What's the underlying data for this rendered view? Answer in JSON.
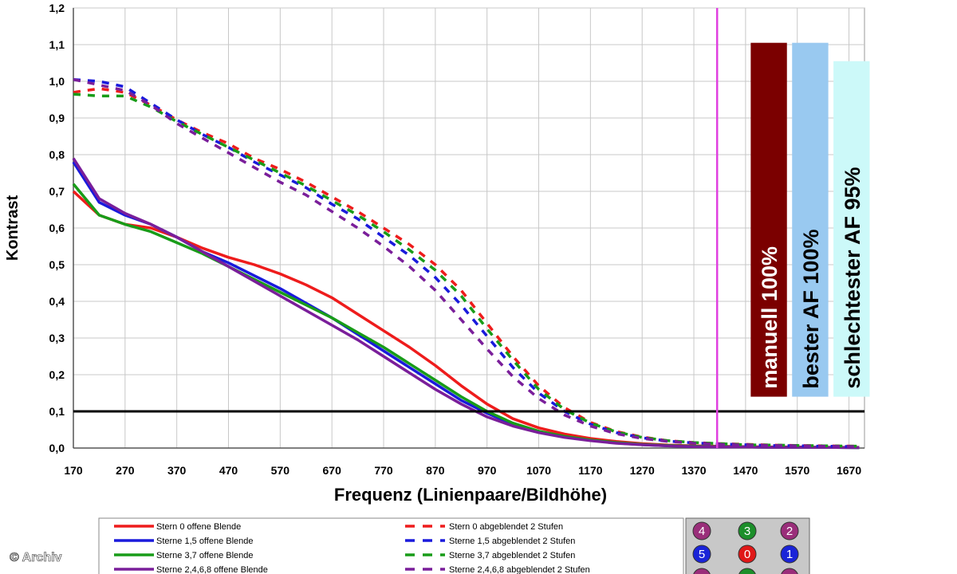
{
  "chart_data": {
    "type": "line",
    "xlabel": "Frequenz (Linienpaare/Bildhöhe)",
    "ylabel": "Kontrast",
    "xlim": [
      170,
      1700
    ],
    "ylim": [
      0,
      1.2
    ],
    "x_ticks": [
      "170",
      "270",
      "370",
      "470",
      "570",
      "670",
      "770",
      "870",
      "970",
      "1070",
      "1170",
      "1270",
      "1370",
      "1470",
      "1570",
      "1670"
    ],
    "y_ticks": [
      "0,0",
      "0,1",
      "0,2",
      "0,3",
      "0,4",
      "0,5",
      "0,6",
      "0,7",
      "0,8",
      "0,9",
      "1,0",
      "1,1",
      "1,2"
    ],
    "grid": true,
    "threshold_line": {
      "y": 0.1,
      "color": "#000000"
    },
    "marker_line": {
      "x": 1415,
      "color": "#e040e0"
    },
    "bars": [
      {
        "label": "manuell 100%",
        "x_start": 1480,
        "x_end": 1550,
        "value": 1.105,
        "color": "#7b0000"
      },
      {
        "label": "bester AF 100%",
        "x_start": 1560,
        "x_end": 1630,
        "value": 1.105,
        "color": "#99c9f0"
      },
      {
        "label": "schlechtester AF 95%",
        "x_start": 1640,
        "x_end": 1710,
        "value": 1.055,
        "color": "#ccf9f9"
      }
    ],
    "series": [
      {
        "name": "Stern 0 offene Blende",
        "color": "#ee1c1c",
        "dashed": false,
        "x": [
          170,
          220,
          270,
          320,
          370,
          420,
          470,
          520,
          570,
          620,
          670,
          720,
          770,
          820,
          870,
          920,
          970,
          1020,
          1070,
          1120,
          1170,
          1220,
          1270,
          1320,
          1370,
          1420,
          1470,
          1520,
          1570,
          1620,
          1690
        ],
        "y": [
          0.7,
          0.635,
          0.61,
          0.6,
          0.575,
          0.545,
          0.52,
          0.5,
          0.475,
          0.445,
          0.41,
          0.365,
          0.32,
          0.275,
          0.225,
          0.17,
          0.12,
          0.08,
          0.055,
          0.038,
          0.026,
          0.018,
          0.012,
          0.008,
          0.006,
          0.005,
          0.004,
          0.003,
          0.003,
          0.002,
          0.002
        ]
      },
      {
        "name": "Sterne 1,5 offene Blende",
        "color": "#1a1adc",
        "dashed": false,
        "x": [
          170,
          220,
          270,
          320,
          370,
          420,
          470,
          520,
          570,
          620,
          670,
          720,
          770,
          820,
          870,
          920,
          970,
          1020,
          1070,
          1120,
          1170,
          1220,
          1270,
          1320,
          1370,
          1420,
          1470,
          1520,
          1570,
          1620,
          1690
        ],
        "y": [
          0.78,
          0.67,
          0.635,
          0.61,
          0.575,
          0.535,
          0.505,
          0.47,
          0.435,
          0.395,
          0.355,
          0.31,
          0.265,
          0.22,
          0.175,
          0.13,
          0.095,
          0.065,
          0.045,
          0.031,
          0.021,
          0.014,
          0.009,
          0.006,
          0.004,
          0.003,
          0.003,
          0.002,
          0.002,
          0.002,
          0.001
        ]
      },
      {
        "name": "Sterne 3,7 offene Blende",
        "color": "#189c18",
        "dashed": false,
        "x": [
          170,
          220,
          270,
          320,
          370,
          420,
          470,
          520,
          570,
          620,
          670,
          720,
          770,
          820,
          870,
          920,
          970,
          1020,
          1070,
          1120,
          1170,
          1220,
          1270,
          1320,
          1370,
          1420,
          1470,
          1520,
          1570,
          1620,
          1690
        ],
        "y": [
          0.72,
          0.635,
          0.61,
          0.59,
          0.56,
          0.53,
          0.495,
          0.46,
          0.425,
          0.39,
          0.355,
          0.315,
          0.275,
          0.23,
          0.185,
          0.14,
          0.1,
          0.068,
          0.046,
          0.032,
          0.022,
          0.015,
          0.01,
          0.007,
          0.005,
          0.004,
          0.003,
          0.002,
          0.002,
          0.002,
          0.001
        ]
      },
      {
        "name": "Sterne 2,4,6,8 offene Blende",
        "color": "#7a1e9a",
        "dashed": false,
        "x": [
          170,
          220,
          270,
          320,
          370,
          420,
          470,
          520,
          570,
          620,
          670,
          720,
          770,
          820,
          870,
          920,
          970,
          1020,
          1070,
          1120,
          1170,
          1220,
          1270,
          1320,
          1370,
          1420,
          1470,
          1520,
          1570,
          1620,
          1690
        ],
        "y": [
          0.79,
          0.68,
          0.64,
          0.61,
          0.575,
          0.535,
          0.495,
          0.455,
          0.415,
          0.375,
          0.335,
          0.295,
          0.25,
          0.205,
          0.16,
          0.12,
          0.085,
          0.06,
          0.042,
          0.029,
          0.02,
          0.013,
          0.009,
          0.006,
          0.004,
          0.003,
          0.003,
          0.002,
          0.002,
          0.002,
          0.001
        ]
      },
      {
        "name": "Stern 0 abgeblendet 2 Stufen",
        "color": "#ee1c1c",
        "dashed": true,
        "x": [
          170,
          220,
          270,
          320,
          370,
          420,
          470,
          520,
          570,
          620,
          670,
          720,
          770,
          820,
          870,
          920,
          970,
          1020,
          1070,
          1120,
          1170,
          1220,
          1270,
          1320,
          1370,
          1420,
          1470,
          1520,
          1570,
          1620,
          1690
        ],
        "y": [
          0.97,
          0.98,
          0.97,
          0.935,
          0.895,
          0.86,
          0.83,
          0.79,
          0.76,
          0.725,
          0.685,
          0.645,
          0.6,
          0.555,
          0.5,
          0.43,
          0.34,
          0.25,
          0.17,
          0.11,
          0.07,
          0.045,
          0.03,
          0.02,
          0.015,
          0.012,
          0.01,
          0.008,
          0.007,
          0.006,
          0.005
        ]
      },
      {
        "name": "Sterne 1,5 abgeblendet 2 Stufen",
        "color": "#1a1adc",
        "dashed": true,
        "x": [
          170,
          220,
          270,
          320,
          370,
          420,
          470,
          520,
          570,
          620,
          670,
          720,
          770,
          820,
          870,
          920,
          970,
          1020,
          1070,
          1120,
          1170,
          1220,
          1270,
          1320,
          1370,
          1420,
          1470,
          1520,
          1570,
          1620,
          1690
        ],
        "y": [
          1.005,
          1.0,
          0.985,
          0.94,
          0.895,
          0.855,
          0.82,
          0.78,
          0.745,
          0.71,
          0.665,
          0.625,
          0.575,
          0.525,
          0.465,
          0.39,
          0.305,
          0.22,
          0.15,
          0.1,
          0.065,
          0.042,
          0.028,
          0.019,
          0.014,
          0.011,
          0.009,
          0.007,
          0.006,
          0.005,
          0.004
        ]
      },
      {
        "name": "Sterne 3,7 abgeblendet 2 Stufen",
        "color": "#189c18",
        "dashed": true,
        "x": [
          170,
          220,
          270,
          320,
          370,
          420,
          470,
          520,
          570,
          620,
          670,
          720,
          770,
          820,
          870,
          920,
          970,
          1020,
          1070,
          1120,
          1170,
          1220,
          1270,
          1320,
          1370,
          1420,
          1470,
          1520,
          1570,
          1620,
          1690
        ],
        "y": [
          0.965,
          0.96,
          0.96,
          0.93,
          0.89,
          0.855,
          0.82,
          0.785,
          0.75,
          0.715,
          0.675,
          0.635,
          0.59,
          0.54,
          0.485,
          0.415,
          0.325,
          0.24,
          0.16,
          0.105,
          0.068,
          0.044,
          0.029,
          0.02,
          0.015,
          0.012,
          0.009,
          0.008,
          0.007,
          0.006,
          0.005
        ]
      },
      {
        "name": "Sterne 2,4,6,8 abgeblendet 2 Stufen",
        "color": "#7a1e9a",
        "dashed": true,
        "x": [
          170,
          220,
          270,
          320,
          370,
          420,
          470,
          520,
          570,
          620,
          670,
          720,
          770,
          820,
          870,
          920,
          970,
          1020,
          1070,
          1120,
          1170,
          1220,
          1270,
          1320,
          1370,
          1420,
          1470,
          1520,
          1570,
          1620,
          1690
        ],
        "y": [
          1.005,
          0.99,
          0.975,
          0.935,
          0.885,
          0.845,
          0.805,
          0.765,
          0.725,
          0.69,
          0.645,
          0.6,
          0.55,
          0.495,
          0.43,
          0.35,
          0.27,
          0.195,
          0.135,
          0.09,
          0.06,
          0.039,
          0.026,
          0.018,
          0.013,
          0.01,
          0.008,
          0.007,
          0.006,
          0.005,
          0.004
        ]
      }
    ],
    "legend": {
      "placement": "bottom"
    }
  },
  "inset": {
    "numbers": [
      "4",
      "3",
      "2",
      "5",
      "0",
      "1"
    ],
    "colors": [
      "#9a2e7a",
      "#1c8f2a",
      "#9a2e7a",
      "#1a24d8",
      "#e01818",
      "#1a24d8"
    ]
  },
  "watermark": "© Archiv"
}
